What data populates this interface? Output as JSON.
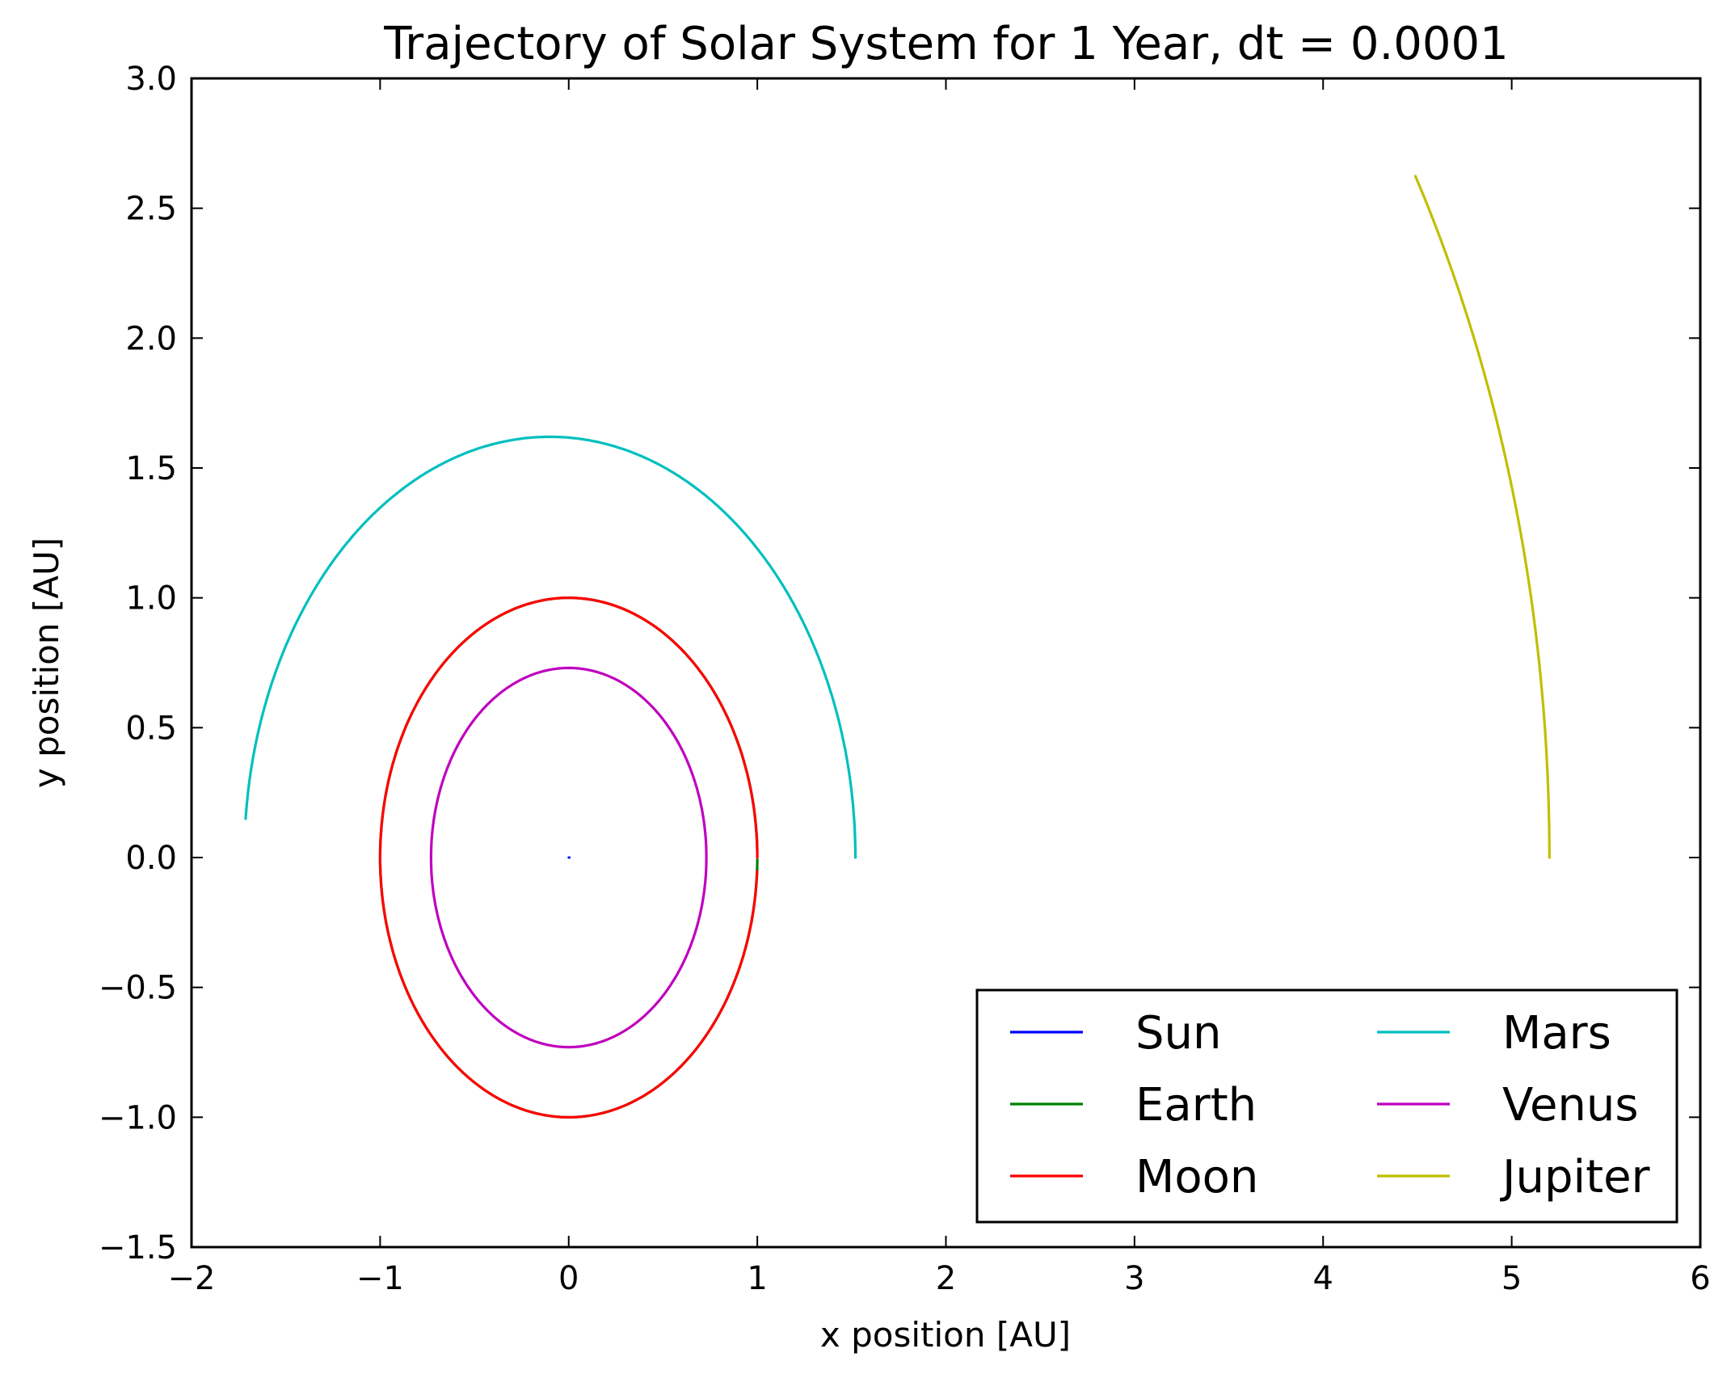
{
  "chart_data": {
    "type": "line",
    "title": "Trajectory of Solar System for 1 Year, dt = 0.0001",
    "xlabel": "x position [AU]",
    "ylabel": "y position [AU]",
    "xlim": [
      -2,
      6
    ],
    "ylim": [
      -1.5,
      3.0
    ],
    "xticks": [
      "−2",
      "−1",
      "0",
      "1",
      "2",
      "3",
      "4",
      "5",
      "6"
    ],
    "yticks": [
      "−1.5",
      "−1.0",
      "−0.5",
      "0.0",
      "0.5",
      "1.0",
      "1.5",
      "2.0",
      "2.5",
      "3.0"
    ],
    "xtick_values": [
      -2,
      -1,
      0,
      1,
      2,
      3,
      4,
      5,
      6
    ],
    "ytick_values": [
      -1.5,
      -1.0,
      -0.5,
      0.0,
      0.5,
      1.0,
      1.5,
      2.0,
      2.5,
      3.0
    ],
    "grid": false,
    "legend_placement": "lower-right",
    "legend_columns": 2,
    "series": [
      {
        "name": "Sun",
        "color": "#0000ff",
        "shape": "point",
        "x": [
          0.0,
          0.003
        ],
        "y": [
          0.0,
          0.0
        ]
      },
      {
        "name": "Earth",
        "color": "#008000",
        "shape": "ellipse",
        "a": 1.0,
        "b": 1.0,
        "start_deg": 1.5,
        "end_deg": 359.5
      },
      {
        "name": "Moon",
        "color": "#ff0000",
        "shape": "ellipse",
        "a": 1.0,
        "b": 1.0,
        "start_deg": 0.0,
        "end_deg": 356.9
      },
      {
        "name": "Mars",
        "color": "#00bfbf",
        "shape": "ellipse_shifted",
        "a": 1.62,
        "b": 1.62,
        "cx": -0.1,
        "cy": 0.0,
        "start_deg": 0.0,
        "end_deg": 174.7
      },
      {
        "name": "Venus",
        "color": "#bf00bf",
        "shape": "ellipse",
        "a": 0.73,
        "b": 0.73,
        "start_deg": 0.0,
        "end_deg": 360.0
      },
      {
        "name": "Jupiter",
        "color": "#bfbf00",
        "shape": "arc",
        "r": 5.2,
        "start_deg": 0.0,
        "end_deg": 30.3
      }
    ]
  }
}
